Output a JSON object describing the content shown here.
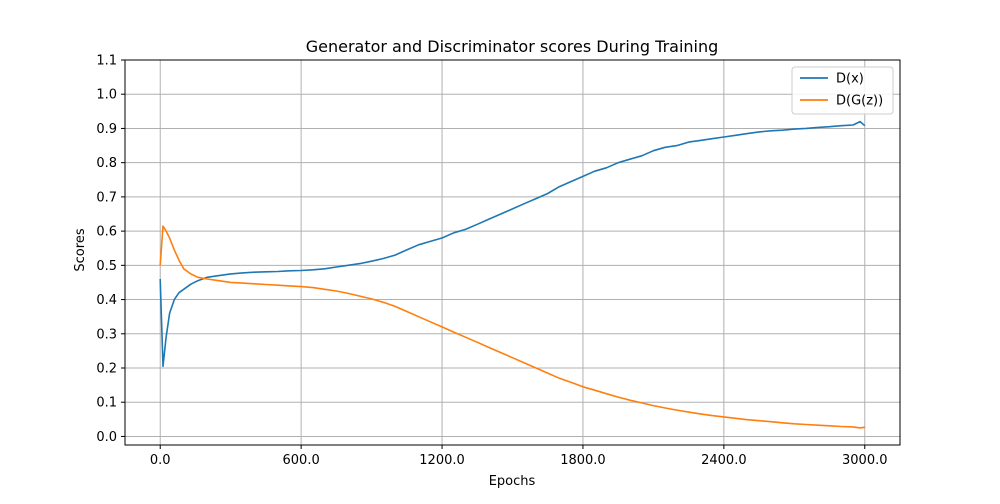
{
  "chart_data": {
    "type": "line",
    "title": "Generator and Discriminator scores During Training",
    "xlabel": "Epochs",
    "ylabel": "Scores",
    "xlim": [
      -150,
      3150
    ],
    "ylim": [
      -0.025,
      1.1
    ],
    "xticks": [
      0,
      600,
      1200,
      1800,
      2400,
      3000
    ],
    "xtick_labels": [
      "0.0",
      "600.0",
      "1200.0",
      "1800.0",
      "2400.0",
      "3000.0"
    ],
    "yticks": [
      0.0,
      0.1,
      0.2,
      0.3,
      0.4,
      0.5,
      0.6,
      0.7,
      0.8,
      0.9,
      1.0,
      1.1
    ],
    "ytick_labels": [
      "0.0",
      "0.1",
      "0.2",
      "0.3",
      "0.4",
      "0.5",
      "0.6",
      "0.7",
      "0.8",
      "0.9",
      "1.0",
      "1.1"
    ],
    "grid": true,
    "legend_position": "top-right",
    "series": [
      {
        "name": "D(x)",
        "color": "#1f77b4",
        "x": [
          0,
          12,
          25,
          40,
          60,
          80,
          100,
          130,
          160,
          200,
          250,
          300,
          350,
          400,
          450,
          500,
          550,
          600,
          650,
          700,
          750,
          800,
          850,
          900,
          950,
          1000,
          1050,
          1100,
          1150,
          1200,
          1250,
          1300,
          1350,
          1400,
          1450,
          1500,
          1550,
          1600,
          1650,
          1700,
          1750,
          1800,
          1850,
          1900,
          1950,
          2000,
          2050,
          2100,
          2150,
          2200,
          2250,
          2300,
          2350,
          2400,
          2450,
          2500,
          2550,
          2600,
          2650,
          2700,
          2750,
          2800,
          2850,
          2900,
          2950,
          2980,
          3000
        ],
        "y": [
          0.46,
          0.205,
          0.29,
          0.36,
          0.4,
          0.42,
          0.43,
          0.445,
          0.455,
          0.465,
          0.47,
          0.475,
          0.478,
          0.48,
          0.481,
          0.482,
          0.484,
          0.485,
          0.487,
          0.49,
          0.495,
          0.5,
          0.505,
          0.512,
          0.52,
          0.53,
          0.545,
          0.56,
          0.57,
          0.58,
          0.595,
          0.605,
          0.62,
          0.635,
          0.65,
          0.665,
          0.68,
          0.695,
          0.71,
          0.73,
          0.745,
          0.76,
          0.775,
          0.785,
          0.8,
          0.81,
          0.82,
          0.835,
          0.845,
          0.85,
          0.86,
          0.865,
          0.87,
          0.875,
          0.88,
          0.885,
          0.89,
          0.893,
          0.895,
          0.898,
          0.9,
          0.903,
          0.905,
          0.908,
          0.91,
          0.92,
          0.908
        ]
      },
      {
        "name": "D(G(z))",
        "color": "#ff7f0e",
        "x": [
          0,
          12,
          25,
          40,
          60,
          80,
          100,
          130,
          160,
          200,
          250,
          300,
          350,
          400,
          450,
          500,
          550,
          600,
          650,
          700,
          750,
          800,
          850,
          900,
          950,
          1000,
          1050,
          1100,
          1150,
          1200,
          1250,
          1300,
          1350,
          1400,
          1450,
          1500,
          1550,
          1600,
          1650,
          1700,
          1750,
          1800,
          1850,
          1900,
          1950,
          2000,
          2050,
          2100,
          2150,
          2200,
          2250,
          2300,
          2350,
          2400,
          2450,
          2500,
          2550,
          2600,
          2650,
          2700,
          2750,
          2800,
          2850,
          2900,
          2950,
          2980,
          3000
        ],
        "y": [
          0.5,
          0.615,
          0.6,
          0.58,
          0.545,
          0.515,
          0.49,
          0.475,
          0.465,
          0.46,
          0.455,
          0.45,
          0.448,
          0.446,
          0.444,
          0.442,
          0.44,
          0.438,
          0.435,
          0.43,
          0.425,
          0.418,
          0.41,
          0.402,
          0.392,
          0.38,
          0.365,
          0.35,
          0.335,
          0.32,
          0.305,
          0.29,
          0.275,
          0.26,
          0.245,
          0.23,
          0.215,
          0.2,
          0.185,
          0.17,
          0.158,
          0.145,
          0.135,
          0.125,
          0.115,
          0.106,
          0.098,
          0.09,
          0.083,
          0.077,
          0.071,
          0.066,
          0.061,
          0.057,
          0.053,
          0.049,
          0.046,
          0.043,
          0.04,
          0.037,
          0.035,
          0.033,
          0.031,
          0.029,
          0.028,
          0.025,
          0.027
        ]
      }
    ]
  }
}
